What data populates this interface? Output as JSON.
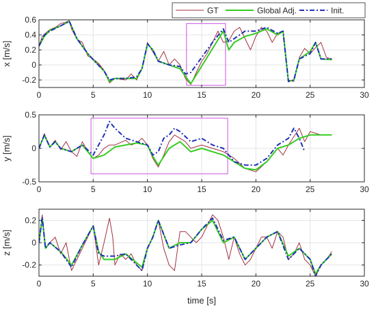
{
  "colors": {
    "gt": "#a0313f",
    "global": "#33cc1f",
    "init": "#1f2fb8",
    "box": "#d46ee6",
    "grid": "#e3e3e3",
    "axis": "#262626"
  },
  "chart_data": [
    {
      "type": "line",
      "ylabel": "x [m/s]",
      "xlim": [
        0,
        30
      ],
      "ylim": [
        -0.3,
        0.6
      ],
      "xticks": [
        "0",
        "5",
        "10",
        "15",
        "20",
        "25",
        "30"
      ],
      "yticks": [
        "0.6",
        "0.4",
        "0.2",
        "0",
        "-0.2"
      ],
      "yticks_values": [
        0.6,
        0.4,
        0.2,
        0,
        -0.2
      ],
      "grid": true,
      "legend": {
        "position": "top-right",
        "entries": [
          "GT",
          "Global Adj.",
          "Init."
        ]
      },
      "highlight_box": {
        "x": [
          13.6,
          17.2
        ],
        "y": [
          -0.27,
          0.55
        ]
      },
      "series": [
        {
          "name": "GT",
          "style": "solid-thin",
          "x": [
            0,
            0.3,
            0.6,
            1,
            1.5,
            2,
            2.5,
            2.8,
            3,
            3.5,
            4,
            4.5,
            5,
            5.5,
            6,
            6.5,
            7,
            8,
            8.5,
            9,
            9.5,
            10,
            10.4,
            11,
            11.5,
            12,
            12.5,
            13,
            13.5,
            14,
            14.5,
            15,
            15.5,
            16,
            16.5,
            17,
            17.5,
            18,
            18.5,
            19,
            19.5,
            20,
            20.5,
            21,
            21.5,
            22,
            22.5,
            23,
            23.5,
            24,
            24.5,
            25,
            25.5,
            26,
            26.5,
            27
          ],
          "y": [
            0.25,
            0.38,
            0.42,
            0.47,
            0.5,
            0.55,
            0.57,
            0.59,
            0.48,
            0.34,
            0.3,
            0.12,
            0.08,
            0.02,
            -0.07,
            -0.24,
            -0.18,
            -0.2,
            -0.12,
            -0.2,
            -0.05,
            0.3,
            0.2,
            0.05,
            0.18,
            0.0,
            0.08,
            0.0,
            -0.18,
            -0.26,
            -0.1,
            0.05,
            0.15,
            0.3,
            0.45,
            0.3,
            0.32,
            0.45,
            0.5,
            0.35,
            0.2,
            0.38,
            0.5,
            0.45,
            0.3,
            0.42,
            0.45,
            -0.2,
            -0.22,
            0.1,
            0.22,
            0.15,
            0.23,
            0.3,
            0.1,
            0.08
          ]
        },
        {
          "name": "Global Adj.",
          "style": "solid-thick",
          "x": [
            0,
            0.5,
            1,
            2,
            2.8,
            3.5,
            4.5,
            5,
            6,
            6.5,
            7,
            8,
            9,
            9.5,
            10,
            10.5,
            11,
            12,
            13,
            14,
            17,
            17.5,
            18,
            19,
            20,
            21,
            22,
            22.5,
            23,
            23.5,
            24,
            25,
            25.5,
            26,
            27
          ],
          "y": [
            0.25,
            0.38,
            0.46,
            0.52,
            0.58,
            0.35,
            0.15,
            0.07,
            -0.08,
            -0.22,
            -0.18,
            -0.18,
            -0.18,
            -0.05,
            0.28,
            0.2,
            0.05,
            0.0,
            -0.05,
            -0.25,
            0.45,
            0.2,
            0.3,
            0.38,
            0.42,
            0.48,
            0.4,
            0.45,
            -0.22,
            -0.2,
            0.08,
            0.18,
            0.3,
            0.08,
            0.07
          ]
        },
        {
          "name": "Init.",
          "style": "dashdot",
          "x": [
            0,
            0.5,
            1,
            2,
            2.8,
            3.5,
            4.5,
            5,
            6,
            6.5,
            7,
            8,
            9,
            9.5,
            10,
            10.5,
            11,
            12,
            13,
            13.5,
            14,
            16,
            17,
            17.5,
            18,
            19,
            20,
            21,
            22,
            22.5,
            23,
            23.5,
            24,
            25,
            25.5,
            26,
            27
          ],
          "y": [
            0.25,
            0.4,
            0.45,
            0.52,
            0.58,
            0.35,
            0.15,
            0.07,
            -0.08,
            -0.2,
            -0.18,
            -0.18,
            -0.16,
            -0.05,
            0.28,
            0.2,
            0.05,
            0.0,
            -0.02,
            -0.12,
            -0.1,
            0.3,
            0.48,
            0.3,
            0.35,
            0.45,
            0.45,
            0.5,
            0.42,
            0.45,
            -0.22,
            -0.2,
            0.08,
            0.15,
            0.3,
            0.08,
            0.08
          ]
        }
      ]
    },
    {
      "type": "line",
      "ylabel": "y [m/s]",
      "xlim": [
        0,
        30
      ],
      "ylim": [
        -0.5,
        0.5
      ],
      "xticks": [
        "0",
        "5",
        "10",
        "15",
        "20",
        "25",
        "30"
      ],
      "yticks": [
        "0.5",
        "0",
        "-0.5"
      ],
      "yticks_values": [
        0.5,
        0,
        -0.5
      ],
      "grid": true,
      "highlight_box": {
        "x": [
          4.8,
          17.4
        ],
        "y": [
          -0.38,
          0.45
        ]
      },
      "series": [
        {
          "name": "GT",
          "style": "solid-thin",
          "x": [
            0,
            0.5,
            1,
            1.5,
            2,
            2.5,
            3,
            3.5,
            4,
            4.5,
            5,
            5.5,
            6,
            6.5,
            7,
            8,
            8.5,
            9,
            9.5,
            10,
            10.5,
            11,
            11.5,
            12,
            12.5,
            13,
            13.5,
            14,
            15,
            16,
            17,
            18,
            19,
            20,
            21,
            22,
            22.5,
            23,
            24,
            24.5,
            25,
            26,
            27
          ],
          "y": [
            0.0,
            0.22,
            0.02,
            0.12,
            -0.02,
            0.1,
            -0.05,
            -0.12,
            0.1,
            -0.05,
            -0.15,
            -0.1,
            0.0,
            0.05,
            0.05,
            0.12,
            0.05,
            0.08,
            0.15,
            0.05,
            -0.15,
            -0.28,
            -0.1,
            0.1,
            0.2,
            0.15,
            0.1,
            0.0,
            0.05,
            0.0,
            -0.05,
            -0.15,
            -0.3,
            -0.35,
            -0.2,
            0.0,
            -0.1,
            0.05,
            0.3,
            0.1,
            0.25,
            0.2,
            0.2
          ]
        },
        {
          "name": "Global Adj.",
          "style": "solid-thick",
          "x": [
            0,
            0.5,
            1,
            1.5,
            2,
            3,
            4,
            5,
            6,
            7,
            8,
            9,
            10,
            10.5,
            11,
            12,
            13,
            14,
            15,
            16,
            17,
            18,
            19,
            20,
            21,
            22,
            23,
            24,
            25,
            26,
            27
          ],
          "y": [
            0.0,
            0.2,
            0.02,
            0.1,
            0.0,
            -0.05,
            0.05,
            -0.15,
            -0.1,
            0.02,
            0.05,
            0.08,
            0.05,
            -0.12,
            -0.25,
            0.0,
            0.1,
            -0.05,
            0.0,
            -0.05,
            -0.1,
            -0.2,
            -0.3,
            -0.32,
            -0.2,
            0.0,
            0.05,
            0.15,
            0.2,
            0.2,
            0.2
          ]
        },
        {
          "name": "Init.",
          "style": "dashdot",
          "x": [
            0,
            0.5,
            1,
            1.5,
            2,
            3,
            4,
            5,
            6,
            6.5,
            7,
            8,
            9,
            10,
            10.5,
            11,
            11.5,
            12,
            12.5,
            13,
            14,
            15,
            16,
            17,
            18,
            19,
            20,
            21,
            22,
            23,
            23.5,
            24,
            24.5
          ],
          "y": [
            0.0,
            0.2,
            0.02,
            0.1,
            0.0,
            -0.05,
            0.05,
            -0.1,
            0.2,
            0.4,
            0.3,
            0.15,
            0.1,
            0.05,
            -0.1,
            -0.05,
            0.15,
            0.2,
            0.3,
            0.25,
            0.1,
            0.15,
            0.05,
            0.0,
            -0.2,
            -0.25,
            -0.25,
            -0.15,
            0.05,
            0.15,
            0.3,
            0.15,
            -0.05
          ]
        }
      ]
    },
    {
      "type": "line",
      "ylabel": "z [m/s]",
      "xlabel": "time [s]",
      "xlim": [
        0,
        30
      ],
      "ylim": [
        -0.3,
        0.3
      ],
      "xticks": [
        "0",
        "5",
        "10",
        "15",
        "20",
        "25",
        "30"
      ],
      "yticks": [
        "0.2",
        "0",
        "-0.2"
      ],
      "yticks_values": [
        0.2,
        0,
        -0.2
      ],
      "grid": true,
      "series": [
        {
          "name": "GT",
          "style": "solid-thin",
          "x": [
            0,
            0.3,
            0.6,
            1,
            1.5,
            2,
            2.5,
            3,
            3.5,
            4,
            4.5,
            5,
            5.5,
            6,
            6.5,
            6.8,
            7,
            7.5,
            8,
            8.5,
            9,
            9.5,
            10,
            10.5,
            11,
            11.5,
            12,
            12.5,
            13,
            13.5,
            14,
            14.5,
            15,
            15.5,
            16,
            16.5,
            17,
            17.5,
            18,
            18.5,
            19,
            19.5,
            20,
            20.5,
            21,
            21.5,
            22,
            22.5,
            23,
            23.5,
            24,
            24.5,
            25,
            25.5,
            26,
            26.5,
            27
          ],
          "y": [
            0.0,
            0.25,
            -0.05,
            0.0,
            0.05,
            -0.1,
            0.0,
            -0.25,
            -0.15,
            -0.05,
            0.05,
            0.15,
            -0.2,
            0.0,
            0.22,
            0.05,
            -0.2,
            -0.1,
            -0.15,
            -0.1,
            -0.2,
            -0.25,
            -0.05,
            0.05,
            0.2,
            -0.05,
            -0.2,
            -0.25,
            0.1,
            0.1,
            0.05,
            0.0,
            0.05,
            0.15,
            0.25,
            0.2,
            0.05,
            -0.15,
            0.05,
            -0.1,
            -0.2,
            -0.15,
            -0.05,
            0.05,
            0.05,
            -0.05,
            0.1,
            0.05,
            -0.15,
            -0.1,
            0.0,
            -0.15,
            -0.2,
            -0.3,
            -0.2,
            -0.15,
            -0.08
          ]
        },
        {
          "name": "Global Adj.",
          "style": "solid-thick",
          "x": [
            0,
            0.3,
            0.6,
            1,
            2,
            3,
            4,
            5,
            5.5,
            6,
            7,
            8,
            9,
            9.5,
            10,
            10.5,
            11,
            12,
            13,
            14,
            15,
            16,
            17,
            18,
            19,
            20,
            21,
            22,
            23,
            24,
            25,
            25.5,
            26,
            27
          ],
          "y": [
            0.0,
            0.22,
            -0.05,
            0.0,
            -0.08,
            -0.2,
            -0.02,
            0.15,
            -0.08,
            -0.15,
            -0.15,
            -0.1,
            -0.18,
            -0.22,
            -0.05,
            0.05,
            0.2,
            -0.05,
            0.0,
            0.0,
            0.12,
            0.2,
            0.0,
            0.05,
            -0.15,
            -0.05,
            0.05,
            0.1,
            -0.12,
            -0.05,
            -0.15,
            -0.28,
            -0.2,
            -0.1
          ]
        },
        {
          "name": "Init.",
          "style": "dashdot",
          "x": [
            0,
            0.3,
            0.6,
            1,
            2,
            3,
            4,
            5,
            5.5,
            6,
            7,
            8,
            9,
            9.5,
            10,
            10.5,
            11,
            12,
            13,
            14,
            15,
            16,
            17,
            18,
            19,
            20,
            21,
            22,
            23,
            24,
            25,
            25.5,
            26,
            27
          ],
          "y": [
            0.0,
            0.23,
            -0.05,
            0.0,
            -0.08,
            -0.22,
            -0.02,
            0.15,
            -0.1,
            -0.12,
            -0.12,
            -0.1,
            -0.2,
            -0.25,
            -0.05,
            0.05,
            0.2,
            -0.05,
            -0.02,
            0.0,
            0.12,
            0.22,
            0.02,
            0.05,
            -0.15,
            -0.05,
            0.05,
            0.1,
            -0.15,
            -0.05,
            -0.15,
            -0.3,
            -0.2,
            -0.1
          ]
        }
      ]
    }
  ]
}
